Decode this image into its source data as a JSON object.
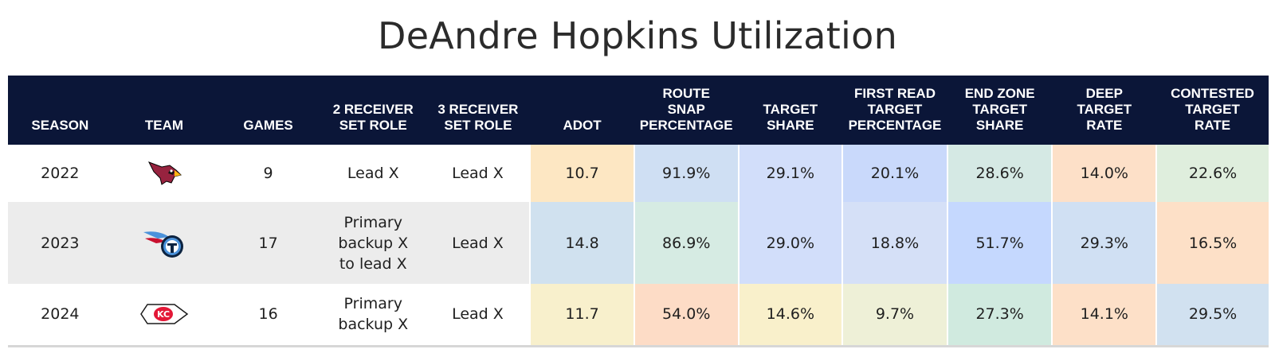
{
  "title": "DeAndre Hopkins Utilization",
  "chart_data": {
    "type": "table",
    "title": "DeAndre Hopkins Utilization",
    "columns": [
      "SEASON",
      "TEAM",
      "GAMES",
      "2 RECEIVER SET ROLE",
      "3 RECEIVER SET ROLE",
      "ADOT",
      "ROUTE SNAP PERCENTAGE",
      "TARGET SHARE",
      "FIRST READ TARGET PERCENTAGE",
      "END ZONE TARGET SHARE",
      "DEEP TARGET RATE",
      "CONTESTED TARGET RATE"
    ],
    "rows": [
      {
        "season": "2022",
        "team_logo": "arizona-cardinals-logo",
        "games": "9",
        "two_wr_role": "Lead X",
        "three_wr_role": "Lead X",
        "metrics": [
          {
            "value": "10.7",
            "color": "#fde7c3"
          },
          {
            "value": "91.9%",
            "color": "#cfdff3"
          },
          {
            "value": "29.1%",
            "color": "#d2defa"
          },
          {
            "value": "20.1%",
            "color": "#c9d9fb"
          },
          {
            "value": "28.6%",
            "color": "#d5e9e4"
          },
          {
            "value": "14.0%",
            "color": "#fde0c8"
          },
          {
            "value": "22.6%",
            "color": "#dfeedd"
          }
        ]
      },
      {
        "season": "2023",
        "team_logo": "tennessee-titans-logo",
        "games": "17",
        "two_wr_role": "Primary backup X to lead X",
        "three_wr_role": "Lead X",
        "metrics": [
          {
            "value": "14.8",
            "color": "#d0e1ef"
          },
          {
            "value": "86.9%",
            "color": "#d6ebe3"
          },
          {
            "value": "29.0%",
            "color": "#d2defa"
          },
          {
            "value": "18.8%",
            "color": "#d5e0f7"
          },
          {
            "value": "51.7%",
            "color": "#c5d8fe"
          },
          {
            "value": "29.3%",
            "color": "#d0e0f3"
          },
          {
            "value": "16.5%",
            "color": "#fde0c7"
          }
        ]
      },
      {
        "season": "2024",
        "team_logo": "kansas-city-chiefs-logo",
        "games": "16",
        "two_wr_role": "Primary backup X",
        "three_wr_role": "Lead X",
        "metrics": [
          {
            "value": "11.7",
            "color": "#f8f0cc"
          },
          {
            "value": "54.0%",
            "color": "#fddcc6"
          },
          {
            "value": "14.6%",
            "color": "#f9f0cb"
          },
          {
            "value": "9.7%",
            "color": "#eef0d7"
          },
          {
            "value": "27.3%",
            "color": "#d0eadf"
          },
          {
            "value": "14.1%",
            "color": "#fde0c8"
          },
          {
            "value": "29.5%",
            "color": "#d1e1f0"
          }
        ]
      }
    ]
  },
  "header_lines": [
    [
      "SEASON"
    ],
    [
      "TEAM"
    ],
    [
      "GAMES"
    ],
    [
      "2 RECEIVER",
      "SET ROLE"
    ],
    [
      "3 RECEIVER",
      "SET ROLE"
    ],
    [
      "ADOT"
    ],
    [
      "ROUTE",
      "SNAP",
      "PERCENTAGE"
    ],
    [
      "TARGET",
      "SHARE"
    ],
    [
      "FIRST READ",
      "TARGET",
      "PERCENTAGE"
    ],
    [
      "END ZONE",
      "TARGET",
      "SHARE"
    ],
    [
      "DEEP",
      "TARGET",
      "RATE"
    ],
    [
      "CONTESTED",
      "TARGET",
      "RATE"
    ]
  ],
  "role_lines": {
    "r0": {
      "two": [
        "Lead X"
      ],
      "three": [
        "Lead X"
      ]
    },
    "r1": {
      "two": [
        "Primary",
        "backup X",
        "to lead X"
      ],
      "three": [
        "Lead X"
      ]
    },
    "r2": {
      "two": [
        "Primary",
        "backup X"
      ],
      "three": [
        "Lead X"
      ]
    }
  },
  "colors": {
    "header_bg": "#0b1638",
    "header_text": "#ffffff",
    "shaded_row": "#ececec"
  }
}
